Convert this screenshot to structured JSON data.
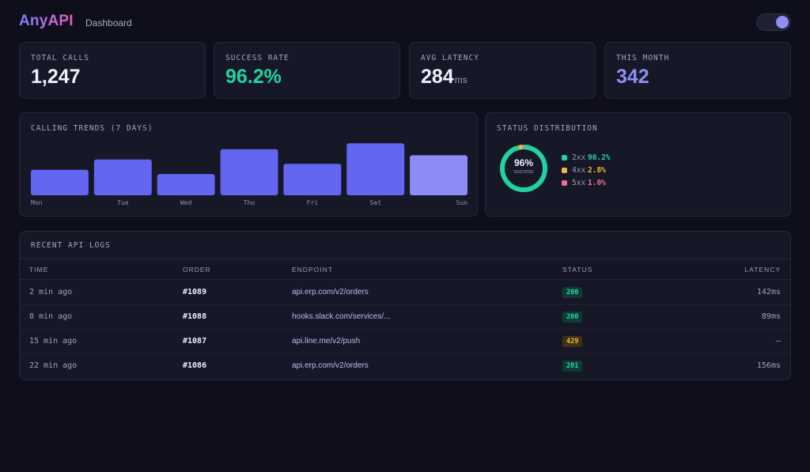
{
  "header": {
    "logo": "AnyAPI",
    "nav": "Dashboard"
  },
  "stats": [
    {
      "label": "TOTAL CALLS",
      "value": "1,247",
      "unit": ""
    },
    {
      "label": "SUCCESS RATE",
      "value": "96.2%",
      "unit": ""
    },
    {
      "label": "AVG LATENCY",
      "value": "284",
      "unit": "ms"
    },
    {
      "label": "THIS MONTH",
      "value": "342",
      "unit": ""
    }
  ],
  "trends": {
    "title": "CALLING TRENDS (7 DAYS)"
  },
  "distribution": {
    "title": "STATUS DISTRIBUTION",
    "center_value": "96%",
    "center_label": "success",
    "items": [
      {
        "code": "2xx",
        "value": "96.2%",
        "color": "#20d3a1",
        "percent": 96.2
      },
      {
        "code": "4xx",
        "value": "2.8%",
        "color": "#f1b93b",
        "percent": 2.8
      },
      {
        "code": "5xx",
        "value": "1.0%",
        "color": "#f06c9b",
        "percent": 1.0
      }
    ]
  },
  "logs": {
    "title": "RECENT API LOGS",
    "columns": [
      "TIME",
      "ORDER",
      "ENDPOINT",
      "STATUS",
      "LATENCY"
    ],
    "rows": [
      {
        "time": "2 min ago",
        "order": "#1089",
        "endpoint": "api.erp.com/v2/orders",
        "status": "200",
        "status_kind": "ok",
        "latency": "142ms"
      },
      {
        "time": "8 min ago",
        "order": "#1088",
        "endpoint": "hooks.slack.com/services/...",
        "status": "200",
        "status_kind": "ok",
        "latency": "89ms"
      },
      {
        "time": "15 min ago",
        "order": "#1087",
        "endpoint": "api.line.me/v2/push",
        "status": "429",
        "status_kind": "warn",
        "latency": "—"
      },
      {
        "time": "22 min ago",
        "order": "#1086",
        "endpoint": "api.erp.com/v2/orders",
        "status": "201",
        "status_kind": "ok",
        "latency": "156ms"
      }
    ]
  },
  "colors": {
    "accent": "#6366f1",
    "accent_light": "#8b8cf8",
    "success": "#20d3a1",
    "warning": "#f1b93b",
    "error": "#f06c9b"
  },
  "chart_data": {
    "type": "bar",
    "categories": [
      "Mon",
      "Tue",
      "Wed",
      "Thu",
      "Fri",
      "Sat",
      "Sun"
    ],
    "values": [
      30,
      42,
      25,
      54,
      37,
      61,
      47
    ],
    "highlight_index": 6,
    "ylim": [
      0,
      65
    ],
    "grid": false,
    "title": "CALLING TRENDS (7 DAYS)"
  }
}
